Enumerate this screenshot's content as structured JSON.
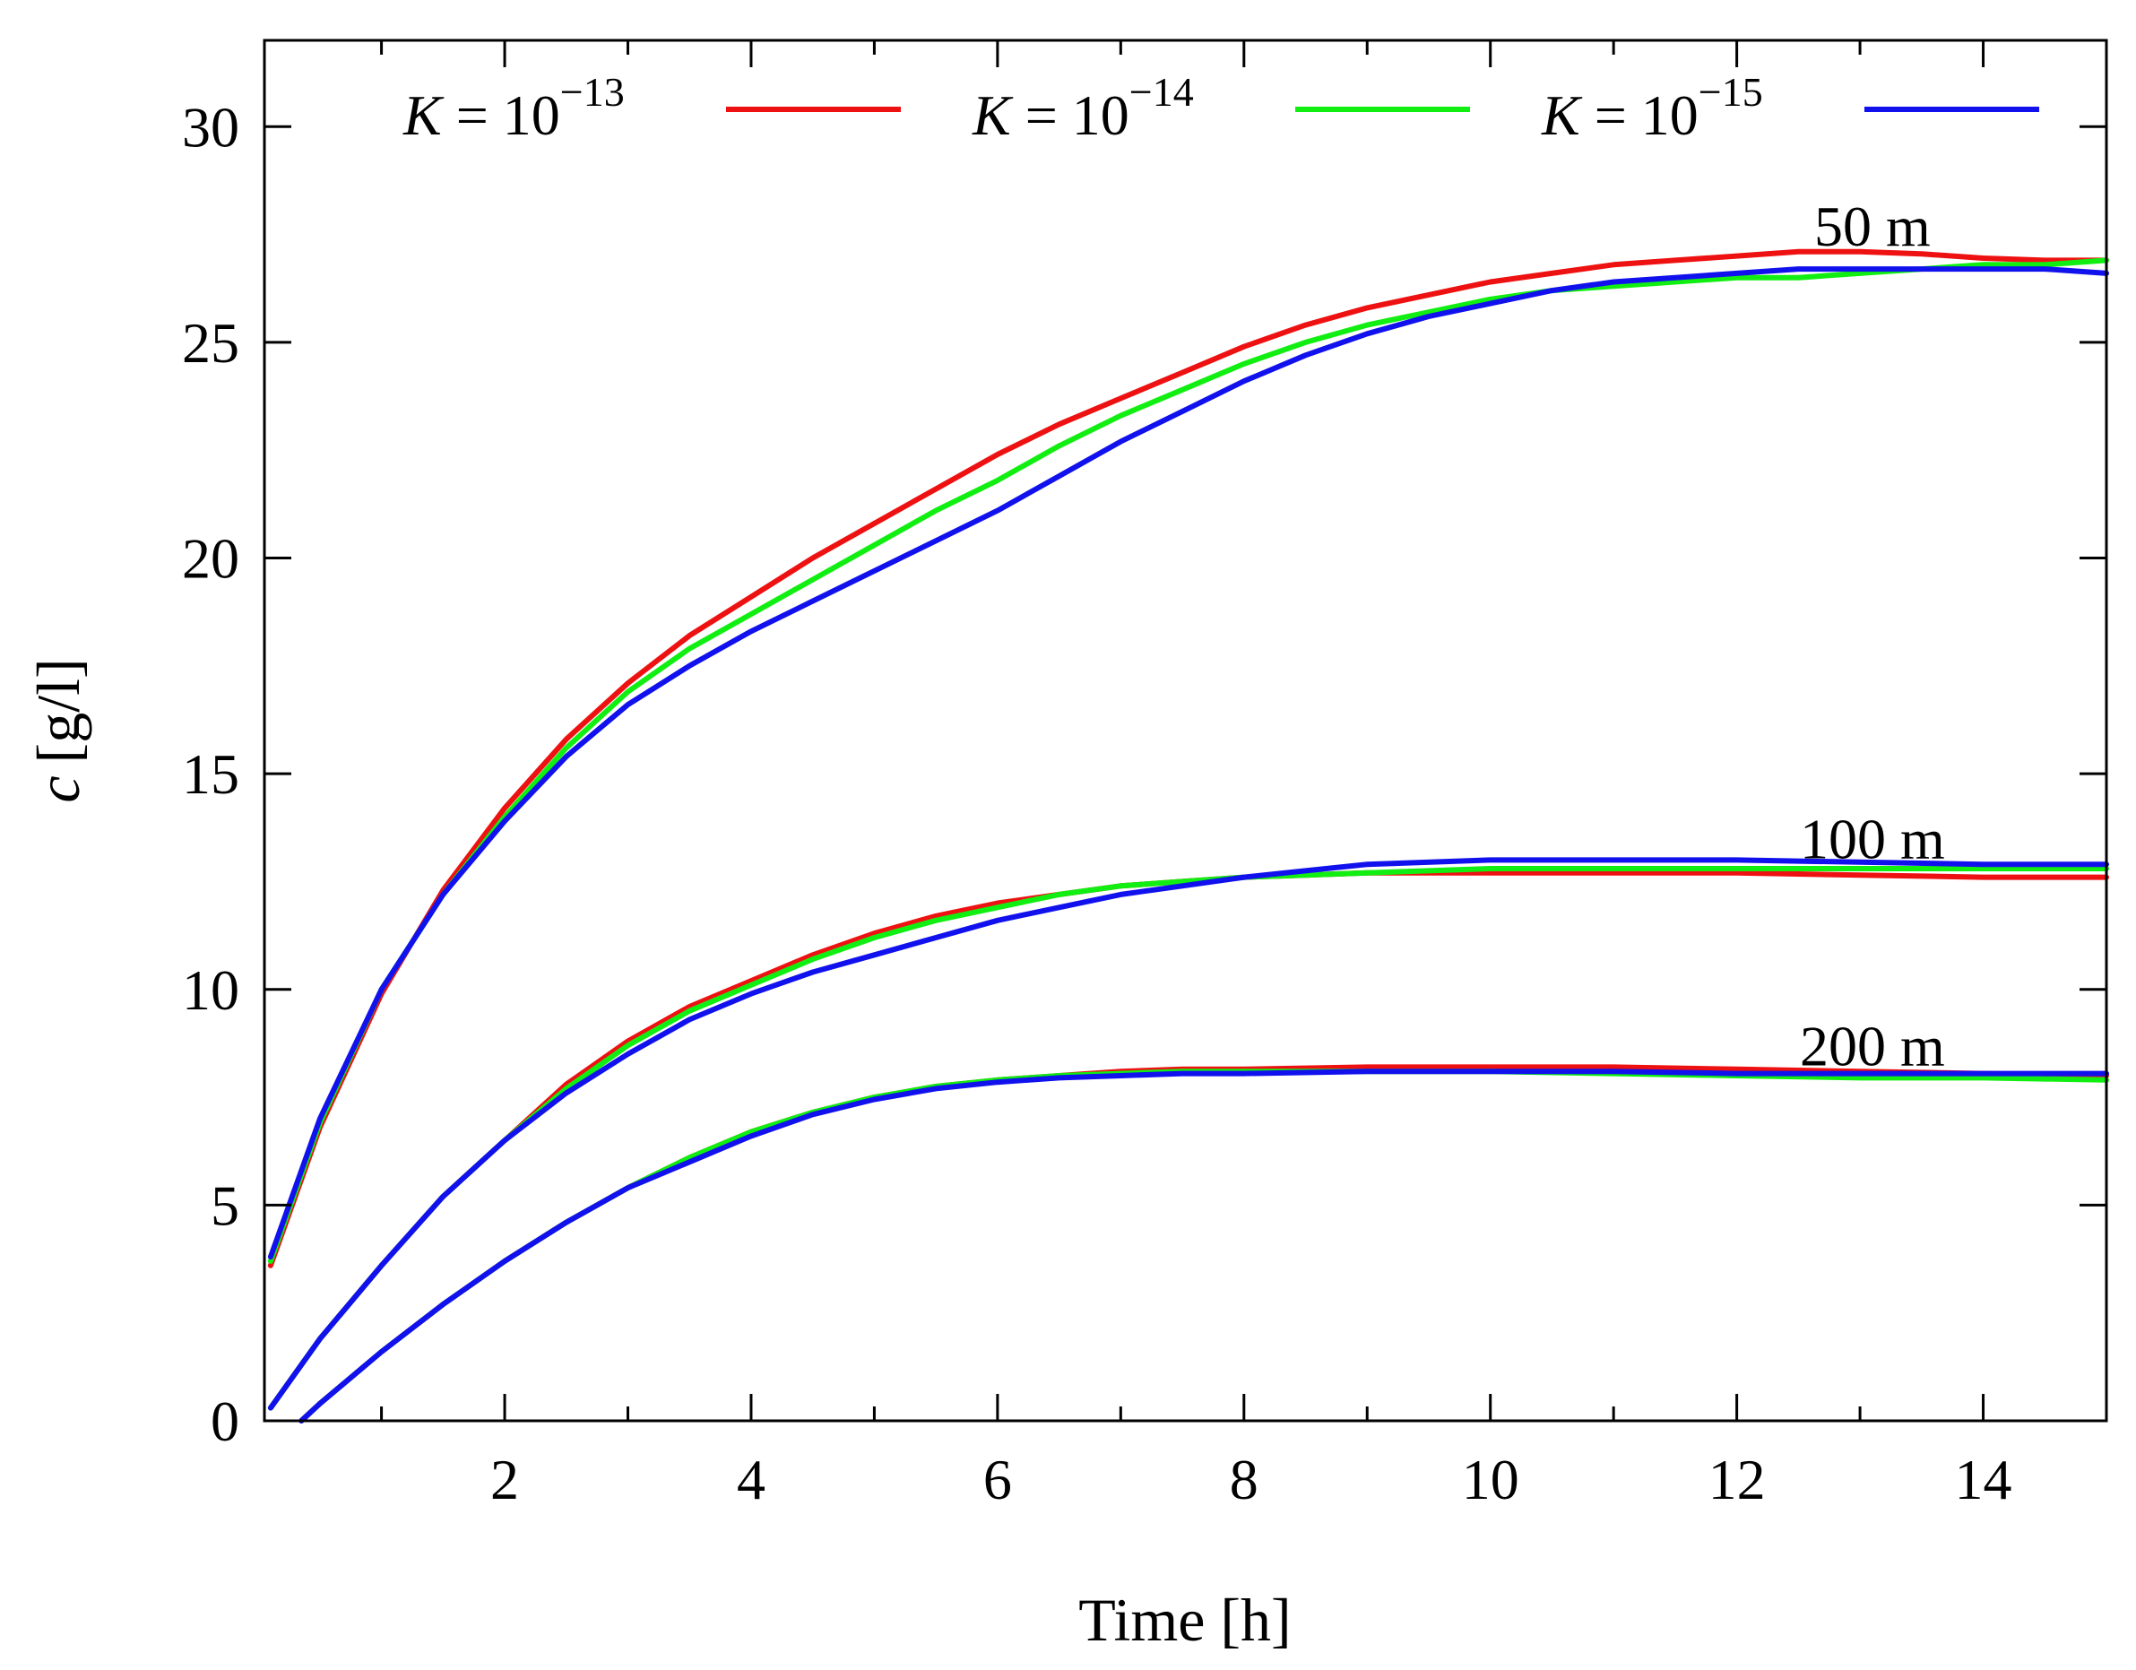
{
  "chart_data": {
    "type": "line",
    "title": "",
    "xlabel": "Time [h]",
    "ylabel_var": "c",
    "ylabel_unit": "[g/l]",
    "xlim": [
      0.05,
      15
    ],
    "ylim": [
      0,
      32
    ],
    "x_ticks": [
      2,
      4,
      6,
      8,
      10,
      12,
      14
    ],
    "x_minor_ticks": [
      1,
      3,
      5,
      7,
      9,
      11,
      13
    ],
    "y_ticks": [
      0,
      5,
      10,
      15,
      20,
      25,
      30
    ],
    "grid": false,
    "legend_position": "top",
    "legend": [
      {
        "key": "k13",
        "prefix": "K",
        "mid": " = 10",
        "exp": "−13",
        "color": "#ee1111"
      },
      {
        "key": "k14",
        "prefix": "K",
        "mid": " = 10",
        "exp": "−14",
        "color": "#11ee11"
      },
      {
        "key": "k15",
        "prefix": "K",
        "mid": " = 10",
        "exp": "−15",
        "color": "#1111ee"
      }
    ],
    "annotations": [
      {
        "text": "50 m",
        "x": 13.1,
        "y": 27.7
      },
      {
        "text": "100 m",
        "x": 13.1,
        "y": 13.5
      },
      {
        "text": "200 m",
        "x": 13.1,
        "y": 8.7
      }
    ],
    "groups": [
      {
        "name": "50 m",
        "series": [
          {
            "name": "K = 10^-13",
            "key": "k13",
            "color": "#ee1111",
            "x": [
              0.1,
              0.5,
              1,
              1.5,
              2,
              2.5,
              3,
              3.5,
              4,
              4.5,
              5,
              5.5,
              6,
              6.5,
              7,
              7.5,
              8,
              8.5,
              9,
              9.5,
              10,
              10.5,
              11,
              11.5,
              12,
              12.5,
              13,
              13.5,
              14,
              14.5,
              15
            ],
            "y": [
              3.6,
              6.8,
              9.9,
              12.3,
              14.2,
              15.8,
              17.1,
              18.2,
              19.1,
              20.0,
              20.8,
              21.6,
              22.4,
              23.1,
              23.7,
              24.3,
              24.9,
              25.4,
              25.8,
              26.1,
              26.4,
              26.6,
              26.8,
              26.9,
              27.0,
              27.1,
              27.1,
              27.05,
              26.95,
              26.9,
              26.9
            ]
          },
          {
            "name": "K = 10^-14",
            "key": "k14",
            "color": "#11ee11",
            "x": [
              0.1,
              0.5,
              1,
              1.5,
              2,
              2.5,
              3,
              3.5,
              4,
              4.5,
              5,
              5.5,
              6,
              6.5,
              7,
              7.5,
              8,
              8.5,
              9,
              9.5,
              10,
              10.5,
              11,
              11.5,
              12,
              12.5,
              13,
              13.5,
              14,
              14.5,
              15
            ],
            "y": [
              3.7,
              6.9,
              10.0,
              12.2,
              14.0,
              15.6,
              16.9,
              17.9,
              18.7,
              19.5,
              20.3,
              21.1,
              21.8,
              22.6,
              23.3,
              23.9,
              24.5,
              25.0,
              25.4,
              25.7,
              26.0,
              26.2,
              26.3,
              26.4,
              26.5,
              26.5,
              26.6,
              26.7,
              26.8,
              26.8,
              26.9
            ]
          },
          {
            "name": "K = 10^-15",
            "key": "k15",
            "color": "#1111ee",
            "x": [
              0.1,
              0.5,
              1,
              1.5,
              2,
              2.5,
              3,
              3.5,
              4,
              4.5,
              5,
              5.5,
              6,
              6.5,
              7,
              7.5,
              8,
              8.5,
              9,
              9.5,
              10,
              10.5,
              11,
              11.5,
              12,
              12.5,
              13,
              13.5,
              14,
              14.5,
              15
            ],
            "y": [
              3.8,
              7.0,
              10.0,
              12.2,
              13.9,
              15.4,
              16.6,
              17.5,
              18.3,
              19.0,
              19.7,
              20.4,
              21.1,
              21.9,
              22.7,
              23.4,
              24.1,
              24.7,
              25.2,
              25.6,
              25.9,
              26.2,
              26.4,
              26.5,
              26.6,
              26.7,
              26.7,
              26.7,
              26.7,
              26.7,
              26.6
            ]
          }
        ]
      },
      {
        "name": "100 m",
        "series": [
          {
            "name": "K = 10^-13",
            "key": "k13",
            "color": "#ee1111",
            "x": [
              0.1,
              0.5,
              1,
              1.5,
              2,
              2.5,
              3,
              3.5,
              4,
              4.5,
              5,
              5.5,
              6,
              6.5,
              7,
              7.5,
              8,
              8.5,
              9,
              10,
              11,
              12,
              13,
              14,
              15
            ],
            "y": [
              0.3,
              1.9,
              3.6,
              5.2,
              6.5,
              7.8,
              8.8,
              9.6,
              10.2,
              10.8,
              11.3,
              11.7,
              12.0,
              12.2,
              12.4,
              12.5,
              12.6,
              12.65,
              12.7,
              12.7,
              12.7,
              12.7,
              12.65,
              12.6,
              12.6
            ]
          },
          {
            "name": "K = 10^-14",
            "key": "k14",
            "color": "#11ee11",
            "x": [
              0.1,
              0.5,
              1,
              1.5,
              2,
              2.5,
              3,
              3.5,
              4,
              4.5,
              5,
              5.5,
              6,
              6.5,
              7,
              7.5,
              8,
              8.5,
              9,
              10,
              11,
              12,
              13,
              14,
              15
            ],
            "y": [
              0.3,
              1.9,
              3.6,
              5.2,
              6.5,
              7.7,
              8.7,
              9.5,
              10.1,
              10.7,
              11.2,
              11.6,
              11.9,
              12.2,
              12.4,
              12.5,
              12.6,
              12.65,
              12.7,
              12.8,
              12.8,
              12.8,
              12.8,
              12.8,
              12.8
            ]
          },
          {
            "name": "K = 10^-15",
            "key": "k15",
            "color": "#1111ee",
            "x": [
              0.1,
              0.5,
              1,
              1.5,
              2,
              2.5,
              3,
              3.5,
              4,
              4.5,
              5,
              5.5,
              6,
              6.5,
              7,
              7.5,
              8,
              8.5,
              9,
              10,
              11,
              12,
              13,
              14,
              15
            ],
            "y": [
              0.3,
              1.9,
              3.6,
              5.2,
              6.5,
              7.6,
              8.5,
              9.3,
              9.9,
              10.4,
              10.8,
              11.2,
              11.6,
              11.9,
              12.2,
              12.4,
              12.6,
              12.75,
              12.9,
              13.0,
              13.0,
              13.0,
              12.95,
              12.9,
              12.9
            ]
          }
        ]
      },
      {
        "name": "200 m",
        "series": [
          {
            "name": "K = 10^-13",
            "key": "k13",
            "color": "#ee1111",
            "x": [
              0.35,
              0.5,
              1,
              1.5,
              2,
              2.5,
              3,
              3.5,
              4,
              4.5,
              5,
              5.5,
              6,
              6.5,
              7,
              7.5,
              8,
              9,
              10,
              11,
              12,
              13,
              14,
              15
            ],
            "y": [
              0.0,
              0.4,
              1.6,
              2.7,
              3.7,
              4.6,
              5.4,
              6.1,
              6.7,
              7.15,
              7.5,
              7.75,
              7.9,
              8.0,
              8.1,
              8.15,
              8.15,
              8.2,
              8.2,
              8.2,
              8.15,
              8.1,
              8.05,
              8.0
            ]
          },
          {
            "name": "K = 10^-14",
            "key": "k14",
            "color": "#11ee11",
            "x": [
              0.35,
              0.5,
              1,
              1.5,
              2,
              2.5,
              3,
              3.5,
              4,
              4.5,
              5,
              5.5,
              6,
              6.5,
              7,
              7.5,
              8,
              9,
              10,
              11,
              12,
              13,
              14,
              15
            ],
            "y": [
              0.0,
              0.4,
              1.6,
              2.7,
              3.7,
              4.6,
              5.4,
              6.1,
              6.7,
              7.15,
              7.5,
              7.75,
              7.9,
              8.0,
              8.05,
              8.1,
              8.1,
              8.1,
              8.1,
              8.05,
              8.0,
              7.95,
              7.95,
              7.9
            ]
          },
          {
            "name": "K = 10^-15",
            "key": "k15",
            "color": "#1111ee",
            "x": [
              0.35,
              0.5,
              1,
              1.5,
              2,
              2.5,
              3,
              3.5,
              4,
              4.5,
              5,
              5.5,
              6,
              6.5,
              7,
              7.5,
              8,
              9,
              10,
              11,
              12,
              13,
              14,
              15
            ],
            "y": [
              0.0,
              0.4,
              1.6,
              2.7,
              3.7,
              4.6,
              5.4,
              6.0,
              6.6,
              7.1,
              7.45,
              7.7,
              7.85,
              7.95,
              8.0,
              8.05,
              8.05,
              8.1,
              8.1,
              8.1,
              8.05,
              8.05,
              8.05,
              8.05
            ]
          }
        ]
      }
    ]
  }
}
